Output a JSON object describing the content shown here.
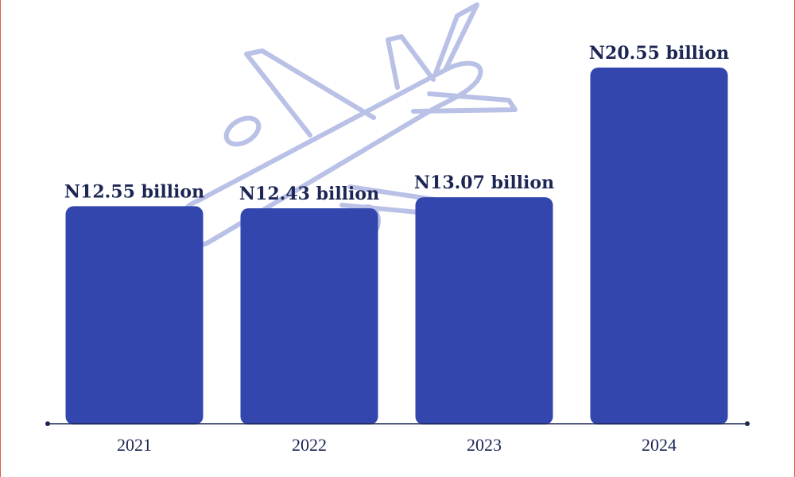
{
  "chart_data": {
    "type": "bar",
    "categories": [
      "2021",
      "2022",
      "2023",
      "2024"
    ],
    "values": [
      12.55,
      12.43,
      13.07,
      20.55
    ],
    "value_labels": [
      "N12.55 billion",
      "N12.43 billion",
      "N13.07 billion",
      "N20.55 billion"
    ],
    "color": "#3346ad"
  }
}
